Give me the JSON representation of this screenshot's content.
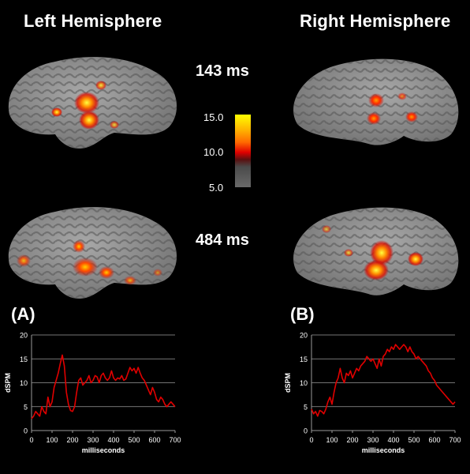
{
  "titles": {
    "left": "Left Hemisphere",
    "right": "Right Hemisphere"
  },
  "times": {
    "top": "143 ms",
    "bottom": "484 ms"
  },
  "colorbar": {
    "ticks": [
      "15.0",
      "10.0",
      "5.0"
    ],
    "colors": [
      "#ffff00",
      "#ff7a00",
      "#e00000",
      "#444444",
      "#777777"
    ]
  },
  "panels": {
    "a": "(A)",
    "b": "(B)"
  },
  "chart_data": [
    {
      "type": "line",
      "panel": "(A)",
      "xlabel": "milliseconds",
      "ylabel": "dSPM",
      "xlim": [
        0,
        700
      ],
      "ylim": [
        0,
        20
      ],
      "xticks": [
        0,
        100,
        200,
        300,
        400,
        500,
        600,
        700
      ],
      "yticks": [
        0,
        5,
        10,
        15,
        20
      ],
      "grid": "horizontal",
      "line_color": "#e00000",
      "x": [
        0,
        10,
        20,
        30,
        40,
        50,
        60,
        70,
        80,
        90,
        100,
        110,
        120,
        130,
        140,
        150,
        160,
        170,
        180,
        190,
        200,
        210,
        220,
        230,
        240,
        250,
        260,
        270,
        280,
        290,
        300,
        310,
        320,
        330,
        340,
        350,
        360,
        370,
        380,
        390,
        400,
        410,
        420,
        430,
        440,
        450,
        460,
        470,
        480,
        490,
        500,
        510,
        520,
        530,
        540,
        550,
        560,
        570,
        580,
        590,
        600,
        610,
        620,
        630,
        640,
        650,
        660,
        670,
        680,
        690,
        700
      ],
      "y": [
        2.5,
        3,
        4,
        3.5,
        3,
        5,
        4,
        3.5,
        7,
        5,
        6,
        9,
        10.5,
        12,
        14,
        15.8,
        13.5,
        8,
        5.5,
        4.2,
        4,
        5,
        8,
        10.5,
        11,
        9.5,
        10,
        10.5,
        11.5,
        10,
        10.5,
        11.5,
        11.2,
        10,
        11.5,
        12,
        11,
        10.5,
        11,
        12.5,
        11,
        10.5,
        11,
        10.8,
        11.5,
        10.5,
        10.8,
        12,
        13.2,
        12.5,
        13,
        12,
        13.2,
        12,
        11,
        10.5,
        9.5,
        8.5,
        7.5,
        9,
        8,
        6.5,
        6,
        7,
        6.5,
        5.5,
        5,
        5.5,
        6,
        5.5,
        5
      ]
    },
    {
      "type": "line",
      "panel": "(B)",
      "xlabel": "milliseconds",
      "ylabel": "dSPM",
      "xlim": [
        0,
        700
      ],
      "ylim": [
        0,
        20
      ],
      "xticks": [
        0,
        100,
        200,
        300,
        400,
        500,
        600,
        700
      ],
      "yticks": [
        0,
        5,
        10,
        15,
        20
      ],
      "grid": "horizontal",
      "line_color": "#e00000",
      "x": [
        0,
        10,
        20,
        30,
        40,
        50,
        60,
        70,
        80,
        90,
        100,
        110,
        120,
        130,
        140,
        150,
        160,
        170,
        180,
        190,
        200,
        210,
        220,
        230,
        240,
        250,
        260,
        270,
        280,
        290,
        300,
        310,
        320,
        330,
        340,
        350,
        360,
        370,
        380,
        390,
        400,
        410,
        420,
        430,
        440,
        450,
        460,
        470,
        480,
        490,
        500,
        510,
        520,
        530,
        540,
        550,
        560,
        570,
        580,
        590,
        600,
        610,
        620,
        630,
        640,
        650,
        660,
        670,
        680,
        690,
        700
      ],
      "y": [
        4.5,
        3.5,
        4,
        3,
        4.2,
        4,
        3.5,
        4.5,
        6,
        7,
        5.5,
        8,
        10,
        11,
        13,
        11,
        10,
        12,
        11.5,
        12.5,
        11,
        12,
        13,
        12.5,
        13.5,
        14,
        14.5,
        15.5,
        15,
        14.5,
        15,
        14,
        13,
        15,
        13.5,
        15.5,
        16,
        17,
        16.5,
        17.5,
        17,
        18,
        17.5,
        17,
        17.5,
        18,
        17.5,
        16.5,
        17.5,
        16.5,
        16,
        15,
        15.5,
        15,
        14.5,
        14,
        13.5,
        12.5,
        12,
        11,
        10.5,
        9.5,
        9,
        8.5,
        8,
        7.5,
        7,
        6.5,
        6,
        5.5,
        6
      ]
    }
  ]
}
